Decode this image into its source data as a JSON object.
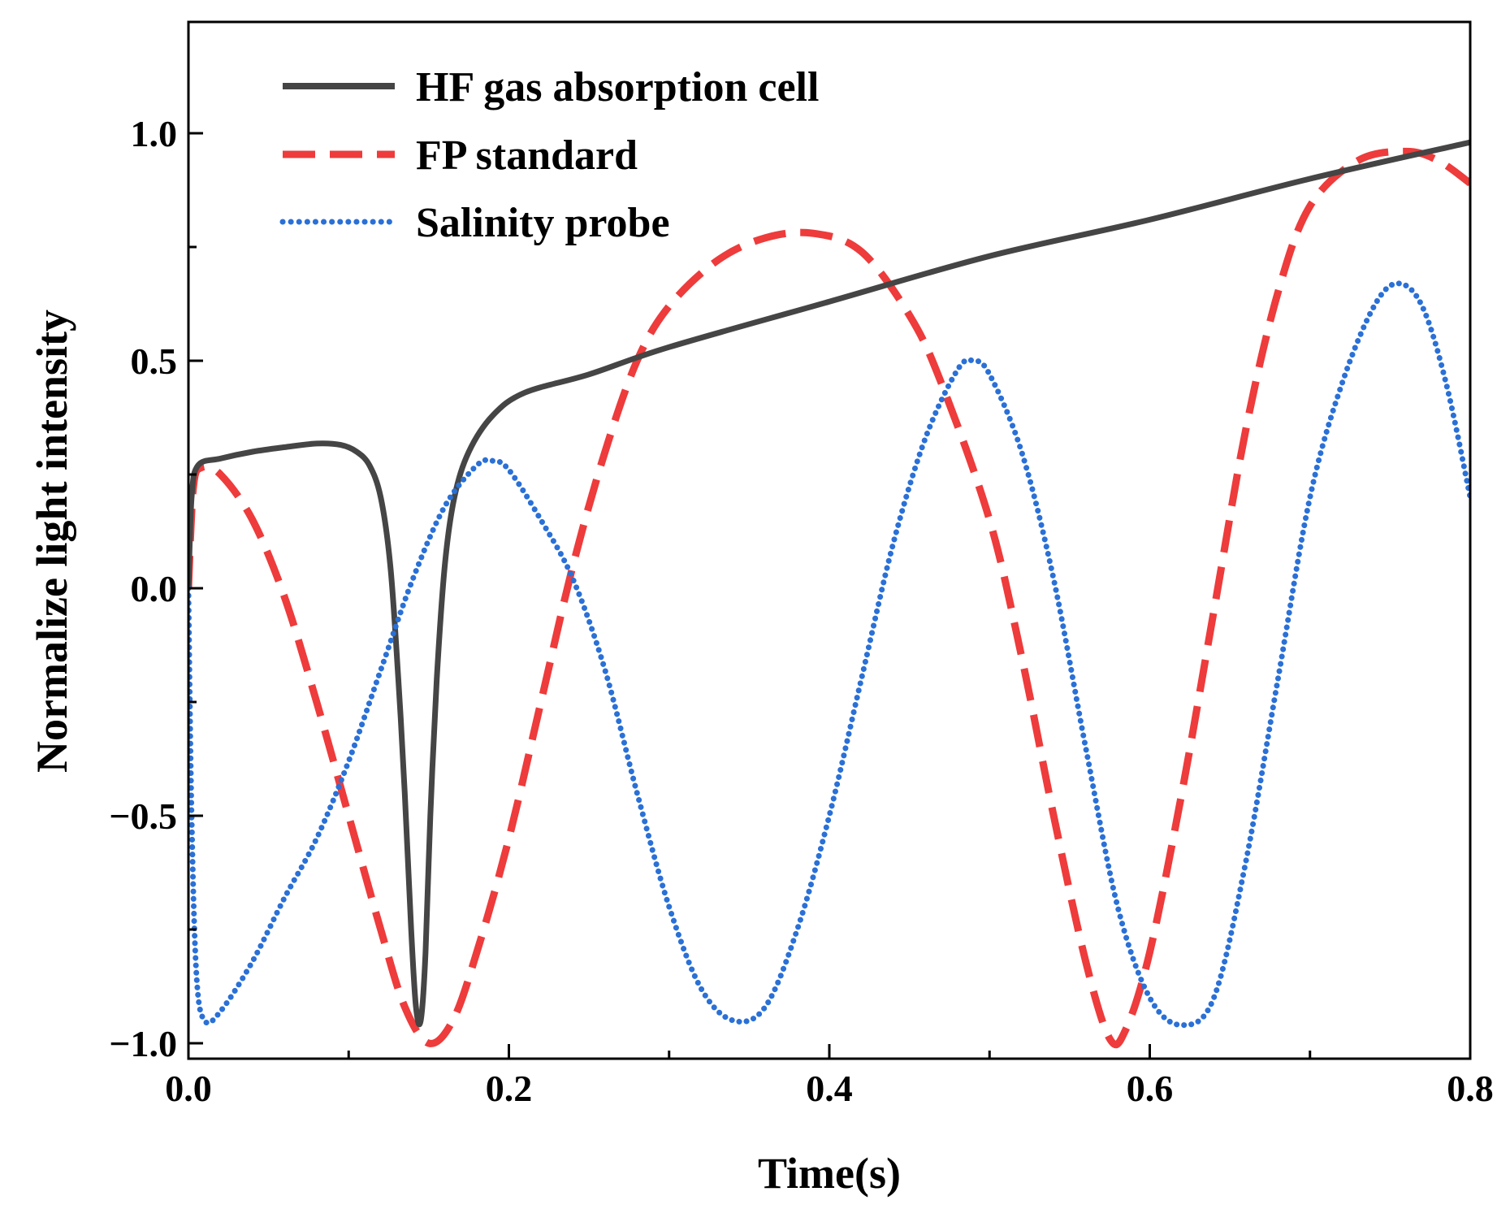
{
  "chart_data": {
    "type": "line",
    "title": "",
    "xlabel": "Time(s)",
    "ylabel": "Normalize light intensity",
    "xlim": [
      0,
      0.8
    ],
    "ylim": [
      -1.0,
      1.25
    ],
    "x_ticks": [
      0.0,
      0.2,
      0.4,
      0.6,
      0.8
    ],
    "x_tick_labels": [
      "0.0",
      "0.2",
      "0.4",
      "0.6",
      "0.8"
    ],
    "y_ticks": [
      -1.0,
      -0.5,
      0.0,
      0.5,
      1.0
    ],
    "y_tick_labels": [
      "−1.0",
      "−0.5",
      "0.0",
      "0.5",
      "1.0"
    ],
    "grid": false,
    "legend_position": "top-left",
    "series": [
      {
        "name": "HF gas absorption cell",
        "style": "solid",
        "color": "#454545",
        "points": [
          [
            0.0,
            0.0
          ],
          [
            0.002,
            0.2
          ],
          [
            0.006,
            0.27
          ],
          [
            0.02,
            0.285
          ],
          [
            0.04,
            0.3
          ],
          [
            0.06,
            0.31
          ],
          [
            0.08,
            0.318
          ],
          [
            0.095,
            0.315
          ],
          [
            0.105,
            0.3
          ],
          [
            0.113,
            0.27
          ],
          [
            0.12,
            0.2
          ],
          [
            0.126,
            0.05
          ],
          [
            0.131,
            -0.2
          ],
          [
            0.135,
            -0.45
          ],
          [
            0.139,
            -0.75
          ],
          [
            0.142,
            -0.92
          ],
          [
            0.145,
            -0.95
          ],
          [
            0.148,
            -0.8
          ],
          [
            0.151,
            -0.5
          ],
          [
            0.155,
            -0.2
          ],
          [
            0.16,
            0.05
          ],
          [
            0.166,
            0.2
          ],
          [
            0.175,
            0.3
          ],
          [
            0.19,
            0.38
          ],
          [
            0.21,
            0.43
          ],
          [
            0.25,
            0.47
          ],
          [
            0.3,
            0.53
          ],
          [
            0.4,
            0.63
          ],
          [
            0.5,
            0.73
          ],
          [
            0.6,
            0.81
          ],
          [
            0.7,
            0.9
          ],
          [
            0.8,
            0.98
          ]
        ]
      },
      {
        "name": "FP standard",
        "style": "dashed",
        "color": "#ee3b3b",
        "points": [
          [
            0.0,
            0.0
          ],
          [
            0.003,
            0.22
          ],
          [
            0.008,
            0.265
          ],
          [
            0.02,
            0.25
          ],
          [
            0.04,
            0.15
          ],
          [
            0.06,
            -0.02
          ],
          [
            0.08,
            -0.25
          ],
          [
            0.1,
            -0.5
          ],
          [
            0.12,
            -0.75
          ],
          [
            0.135,
            -0.92
          ],
          [
            0.15,
            -1.0
          ],
          [
            0.165,
            -0.95
          ],
          [
            0.18,
            -0.8
          ],
          [
            0.2,
            -0.55
          ],
          [
            0.22,
            -0.25
          ],
          [
            0.24,
            0.05
          ],
          [
            0.26,
            0.3
          ],
          [
            0.28,
            0.5
          ],
          [
            0.3,
            0.62
          ],
          [
            0.33,
            0.72
          ],
          [
            0.36,
            0.77
          ],
          [
            0.39,
            0.78
          ],
          [
            0.42,
            0.74
          ],
          [
            0.45,
            0.6
          ],
          [
            0.47,
            0.45
          ],
          [
            0.5,
            0.15
          ],
          [
            0.52,
            -0.15
          ],
          [
            0.54,
            -0.5
          ],
          [
            0.56,
            -0.82
          ],
          [
            0.575,
            -0.99
          ],
          [
            0.585,
            -0.97
          ],
          [
            0.6,
            -0.8
          ],
          [
            0.62,
            -0.45
          ],
          [
            0.64,
            -0.05
          ],
          [
            0.66,
            0.35
          ],
          [
            0.68,
            0.65
          ],
          [
            0.7,
            0.84
          ],
          [
            0.73,
            0.94
          ],
          [
            0.76,
            0.96
          ],
          [
            0.78,
            0.94
          ],
          [
            0.8,
            0.89
          ]
        ]
      },
      {
        "name": "Salinity probe",
        "style": "dotted",
        "color": "#2a70d6",
        "points": [
          [
            0.0,
            0.0
          ],
          [
            0.002,
            -0.5
          ],
          [
            0.005,
            -0.85
          ],
          [
            0.01,
            -0.95
          ],
          [
            0.02,
            -0.93
          ],
          [
            0.04,
            -0.82
          ],
          [
            0.06,
            -0.68
          ],
          [
            0.08,
            -0.55
          ],
          [
            0.1,
            -0.38
          ],
          [
            0.12,
            -0.18
          ],
          [
            0.14,
            0.02
          ],
          [
            0.16,
            0.18
          ],
          [
            0.18,
            0.27
          ],
          [
            0.19,
            0.28
          ],
          [
            0.2,
            0.26
          ],
          [
            0.22,
            0.15
          ],
          [
            0.24,
            0.02
          ],
          [
            0.26,
            -0.18
          ],
          [
            0.28,
            -0.45
          ],
          [
            0.3,
            -0.7
          ],
          [
            0.32,
            -0.88
          ],
          [
            0.34,
            -0.95
          ],
          [
            0.36,
            -0.92
          ],
          [
            0.38,
            -0.75
          ],
          [
            0.4,
            -0.5
          ],
          [
            0.42,
            -0.2
          ],
          [
            0.44,
            0.1
          ],
          [
            0.46,
            0.33
          ],
          [
            0.48,
            0.48
          ],
          [
            0.49,
            0.5
          ],
          [
            0.5,
            0.47
          ],
          [
            0.52,
            0.3
          ],
          [
            0.54,
            0.02
          ],
          [
            0.56,
            -0.35
          ],
          [
            0.58,
            -0.7
          ],
          [
            0.6,
            -0.9
          ],
          [
            0.62,
            -0.96
          ],
          [
            0.64,
            -0.9
          ],
          [
            0.66,
            -0.6
          ],
          [
            0.68,
            -0.2
          ],
          [
            0.7,
            0.2
          ],
          [
            0.72,
            0.45
          ],
          [
            0.74,
            0.62
          ],
          [
            0.755,
            0.67
          ],
          [
            0.77,
            0.62
          ],
          [
            0.785,
            0.45
          ],
          [
            0.8,
            0.2
          ]
        ]
      }
    ]
  }
}
